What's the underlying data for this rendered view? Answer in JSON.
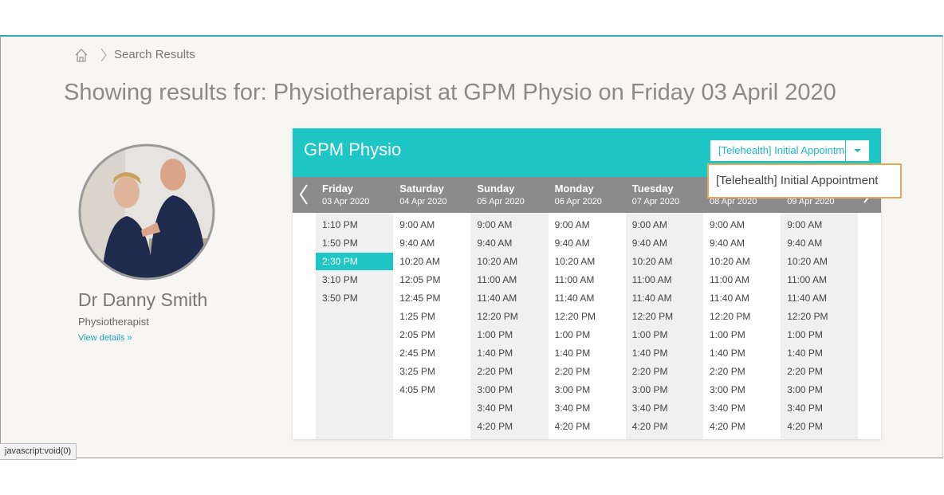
{
  "breadcrumb": {
    "current": "Search Results"
  },
  "heading": "Showing results for: Physiotherapist at GPM Physio on Friday 03 April 2020",
  "practitioner": {
    "name": "Dr Danny Smith",
    "role": "Physiotherapist",
    "link": "View details »"
  },
  "calendar": {
    "clinic": "GPM Physio",
    "dropdown_options": [
      "[Telehealth] Initial Appointment"
    ],
    "selected": {
      "day": 0,
      "slot": 2
    },
    "days": [
      {
        "name": "Friday",
        "date": "03 Apr 2020",
        "times": [
          "1:10 PM",
          "1:50 PM",
          "2:30 PM",
          "3:10 PM",
          "3:50 PM"
        ]
      },
      {
        "name": "Saturday",
        "date": "04 Apr 2020",
        "times": [
          "9:00 AM",
          "9:40 AM",
          "10:20 AM",
          "12:05 PM",
          "12:45 PM",
          "1:25 PM",
          "2:05 PM",
          "2:45 PM",
          "3:25 PM",
          "4:05 PM"
        ]
      },
      {
        "name": "Sunday",
        "date": "05 Apr 2020",
        "times": [
          "9:00 AM",
          "9:40 AM",
          "10:20 AM",
          "11:00 AM",
          "11:40 AM",
          "12:20 PM",
          "1:00 PM",
          "1:40 PM",
          "2:20 PM",
          "3:00 PM",
          "3:40 PM",
          "4:20 PM"
        ]
      },
      {
        "name": "Monday",
        "date": "06 Apr 2020",
        "times": [
          "9:00 AM",
          "9:40 AM",
          "10:20 AM",
          "11:00 AM",
          "11:40 AM",
          "12:20 PM",
          "1:00 PM",
          "1:40 PM",
          "2:20 PM",
          "3:00 PM",
          "3:40 PM",
          "4:20 PM"
        ]
      },
      {
        "name": "Tuesday",
        "date": "07 Apr 2020",
        "times": [
          "9:00 AM",
          "9:40 AM",
          "10:20 AM",
          "11:00 AM",
          "11:40 AM",
          "12:20 PM",
          "1:00 PM",
          "1:40 PM",
          "2:20 PM",
          "3:00 PM",
          "3:40 PM",
          "4:20 PM"
        ]
      },
      {
        "name": null,
        "date": "08 Apr 2020",
        "times": [
          "9:00 AM",
          "9:40 AM",
          "10:20 AM",
          "11:00 AM",
          "11:40 AM",
          "12:20 PM",
          "1:00 PM",
          "1:40 PM",
          "2:20 PM",
          "3:00 PM",
          "3:40 PM",
          "4:20 PM"
        ]
      },
      {
        "name": null,
        "date": "09 Apr 2020",
        "times": [
          "9:00 AM",
          "9:40 AM",
          "10:20 AM",
          "11:00 AM",
          "11:40 AM",
          "12:20 PM",
          "1:00 PM",
          "1:40 PM",
          "2:20 PM",
          "3:00 PM",
          "3:40 PM",
          "4:20 PM"
        ]
      }
    ]
  },
  "status_bar": "javascript:void(0)"
}
